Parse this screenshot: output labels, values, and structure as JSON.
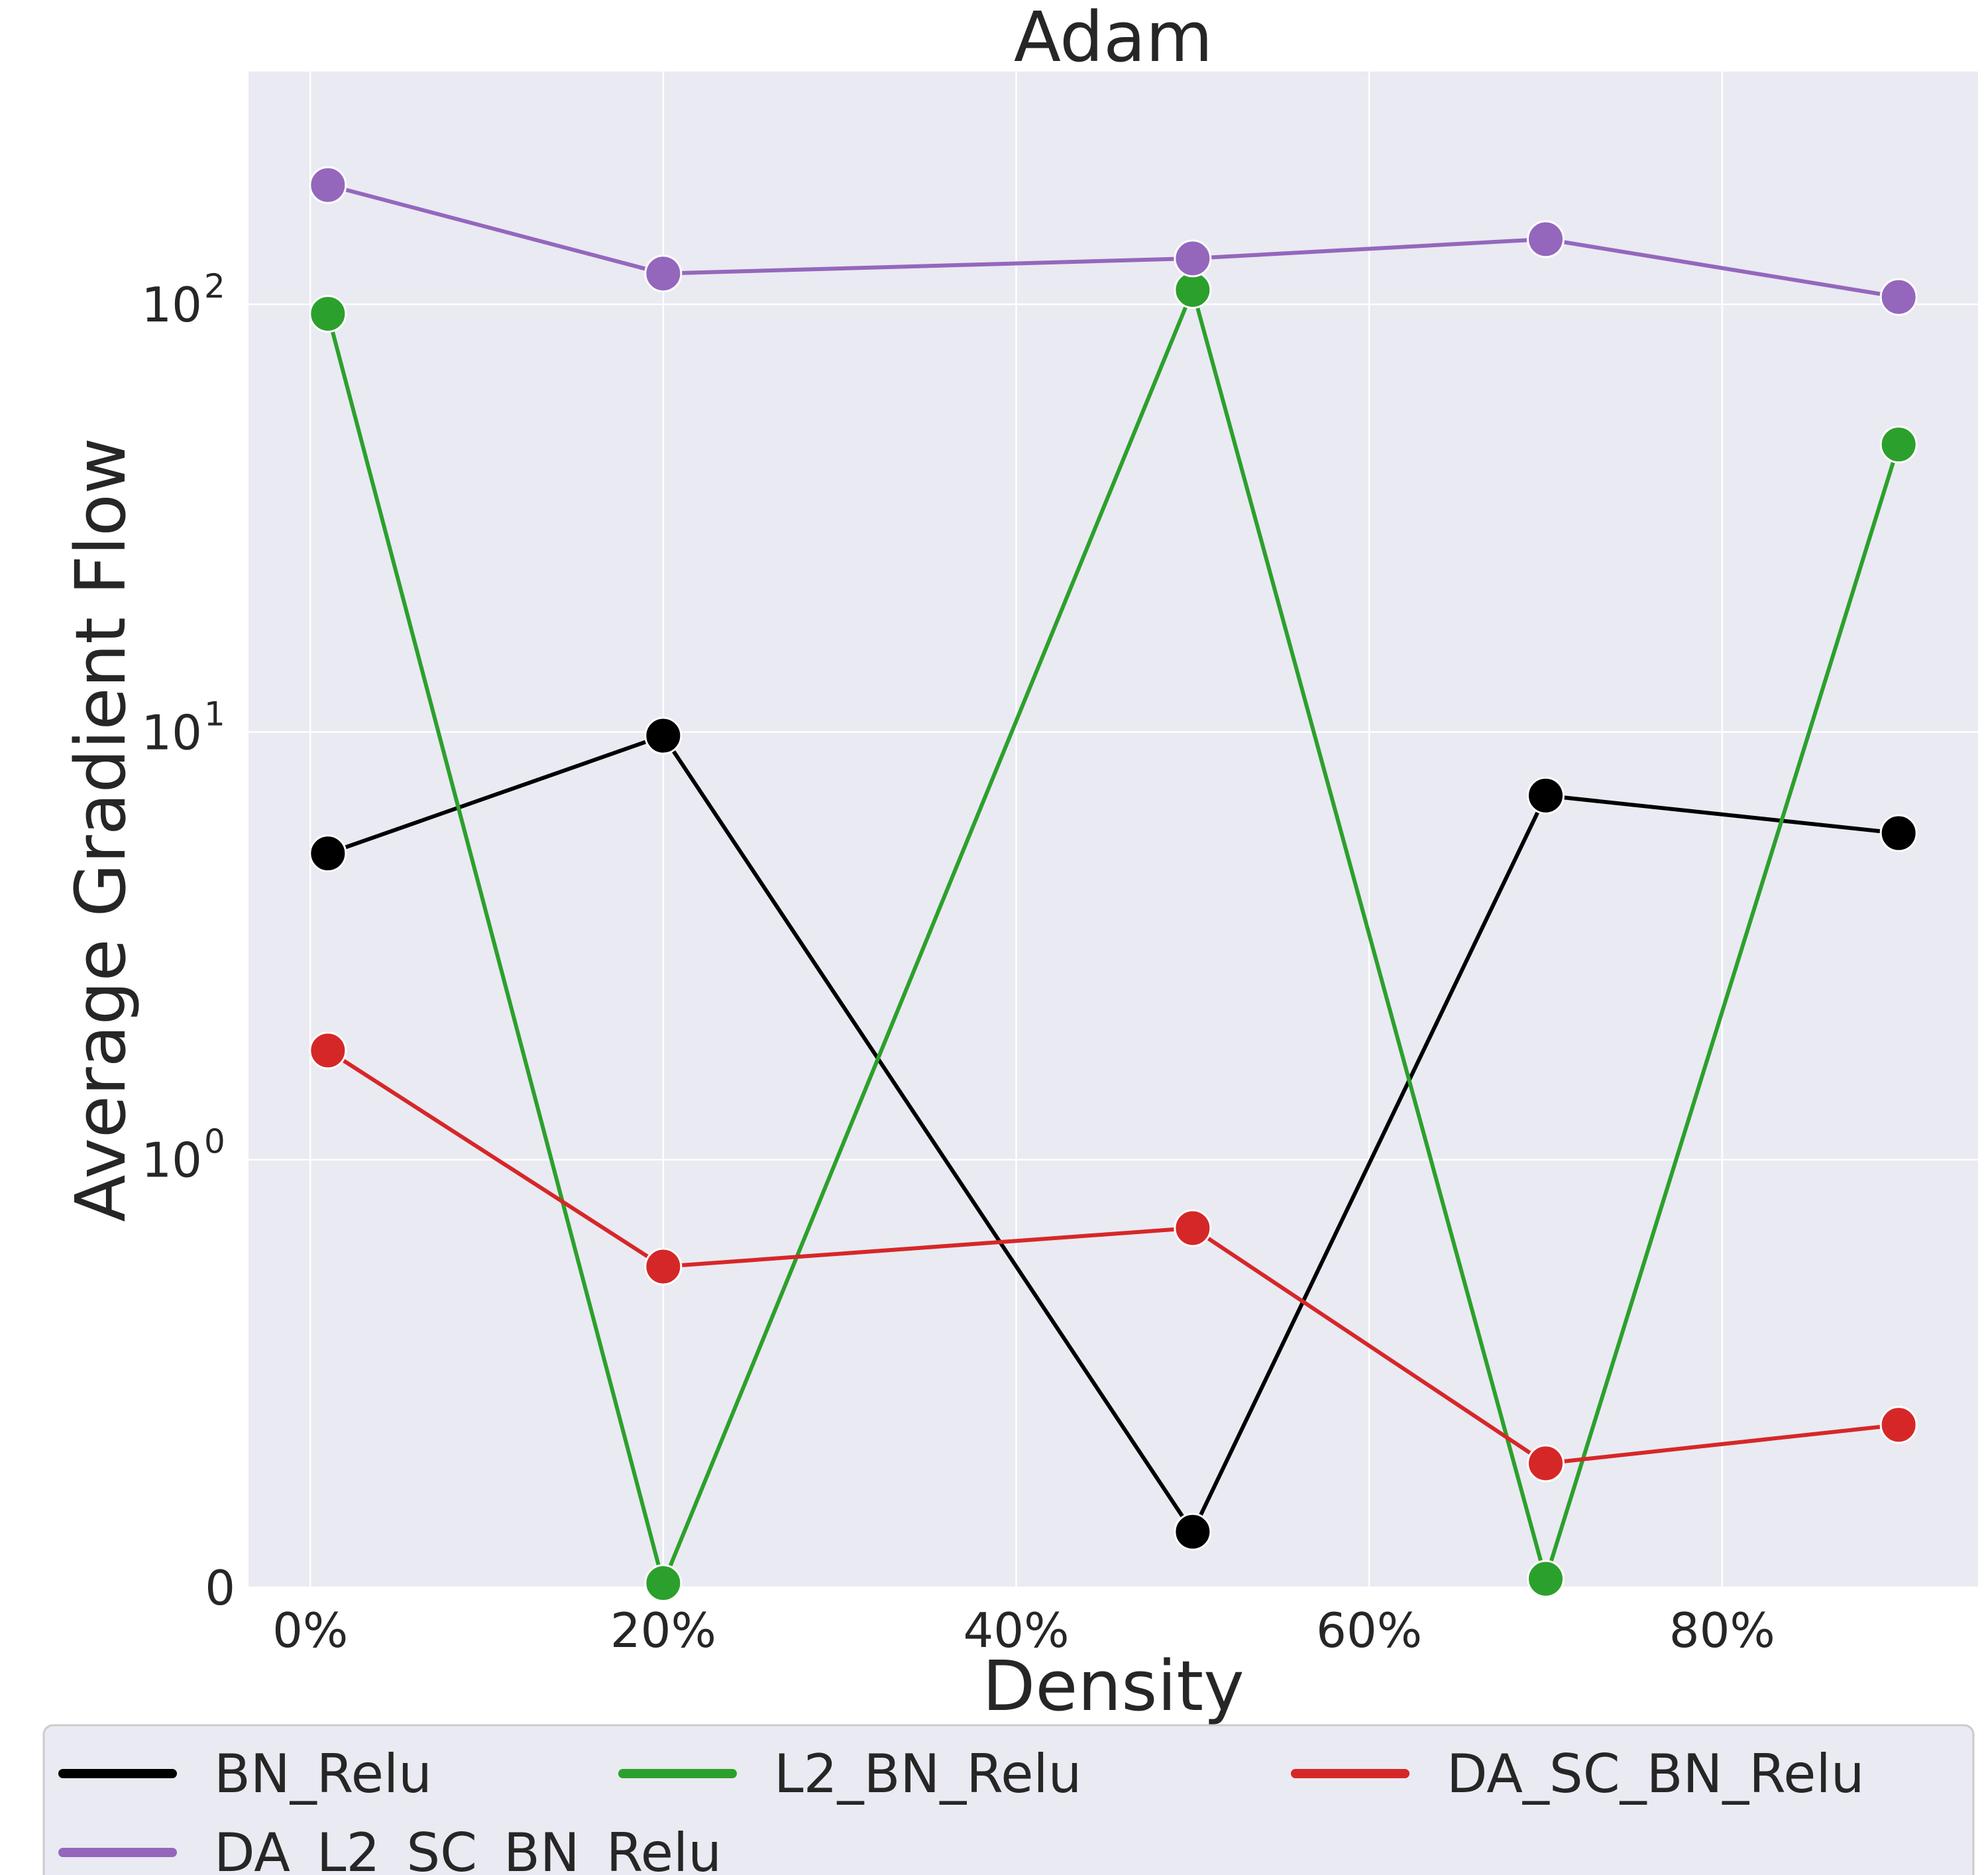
{
  "chart_data": {
    "type": "line",
    "title": "Adam",
    "xlabel": "Density",
    "ylabel": "Average Gradient Flow",
    "yscale": "symlog",
    "x_ticks": [
      {
        "value": 0,
        "label": "0%"
      },
      {
        "value": 20,
        "label": "20%"
      },
      {
        "value": 40,
        "label": "40%"
      },
      {
        "value": 60,
        "label": "60%"
      },
      {
        "value": 80,
        "label": "80%"
      }
    ],
    "y_ticks": [
      {
        "value": 0,
        "base": "0",
        "exp": ""
      },
      {
        "value": 1,
        "base": "10",
        "exp": "0"
      },
      {
        "value": 10,
        "base": "10",
        "exp": "1"
      },
      {
        "value": 100,
        "base": "10",
        "exp": "2"
      }
    ],
    "xlim": [
      -3.5,
      94.5
    ],
    "ylim": [
      0,
      350
    ],
    "x": [
      1,
      20,
      50,
      70,
      90
    ],
    "series": [
      {
        "name": "BN_Relu",
        "color": "#000000",
        "values": [
          5.2,
          9.8,
          0.13,
          7.1,
          5.8
        ]
      },
      {
        "name": "L2_BN_Relu",
        "color": "#2ca02c",
        "values": [
          95,
          0.01,
          108,
          0.02,
          47
        ]
      },
      {
        "name": "DA_SC_BN_Relu",
        "color": "#d62728",
        "values": [
          1.8,
          0.75,
          0.84,
          0.29,
          0.38
        ]
      },
      {
        "name": "DA_L2_SC_BN_Relu",
        "color": "#9467bd",
        "values": [
          190,
          118,
          128,
          142,
          104
        ]
      }
    ],
    "legend_position": "bottom"
  }
}
